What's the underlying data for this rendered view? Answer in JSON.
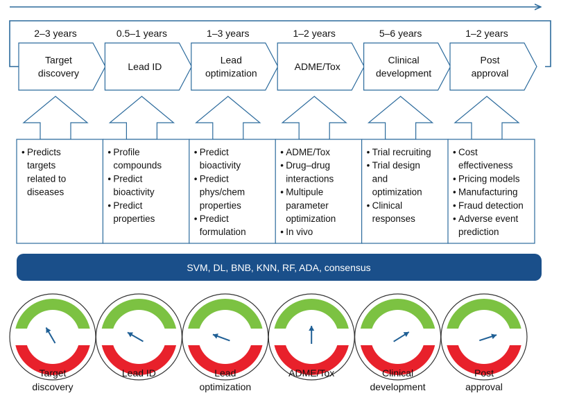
{
  "stages": [
    {
      "duration": "2–3 years",
      "label_lines": [
        "Target",
        "discovery"
      ],
      "bullets": [
        [
          "Predicts",
          "targets",
          "related to",
          "diseases"
        ]
      ],
      "gauge_label_lines": [
        "Target",
        "discovery"
      ],
      "gauge_needle_deg": 30
    },
    {
      "duration": "0.5–1 years",
      "label_lines": [
        "Lead ID"
      ],
      "bullets": [
        [
          "Profile",
          "compounds"
        ],
        [
          "Predict",
          "bioactivity"
        ],
        [
          "Predict",
          "properties"
        ]
      ],
      "gauge_label_lines": [
        "Lead ID"
      ],
      "gauge_needle_deg": 60
    },
    {
      "duration": "1–3 years",
      "label_lines": [
        "Lead",
        "optimization"
      ],
      "bullets": [
        [
          "Predict",
          "bioactivity"
        ],
        [
          "Predict",
          "phys/chem",
          "properties"
        ],
        [
          "Predict",
          "formulation"
        ]
      ],
      "gauge_label_lines": [
        "Lead",
        "optimization"
      ],
      "gauge_needle_deg": 70
    },
    {
      "duration": "1–2 years",
      "label_lines": [
        "ADME/Tox"
      ],
      "bullets": [
        [
          "ADME/Tox"
        ],
        [
          "Drug–drug",
          "interactions"
        ],
        [
          "Multipule",
          "parameter",
          "optimization"
        ],
        [
          "In vivo"
        ]
      ],
      "gauge_label_lines": [
        "ADME/Tox"
      ],
      "gauge_needle_deg": 0
    },
    {
      "duration": "5–6 years",
      "label_lines": [
        "Clinical",
        "development"
      ],
      "bullets": [
        [
          "Trial recruiting"
        ],
        [
          "Trial design",
          "and",
          "optimization"
        ],
        [
          "Clinical",
          "responses"
        ]
      ],
      "gauge_label_lines": [
        "Clinical",
        "development"
      ],
      "gauge_needle_deg": -58
    },
    {
      "duration": "1–2 years",
      "label_lines": [
        "Post",
        "approval"
      ],
      "bullets": [
        [
          "Cost",
          "effectiveness"
        ],
        [
          "Pricing models"
        ],
        [
          "Manufacturing"
        ],
        [
          "Fraud detection"
        ],
        [
          "Adverse event",
          "prediction"
        ]
      ],
      "gauge_label_lines": [
        "Post",
        "approval"
      ],
      "gauge_needle_deg": -72
    }
  ],
  "methods_banner": "SVM, DL, BNB, KNN, RF, ADA, consensus",
  "colors": {
    "outline": "#2b6a9c",
    "banner": "#1a4f8a",
    "gauge_green": "#7cc242",
    "gauge_red": "#e8212b",
    "needle": "#1f5f95",
    "gauge_ring": "#333333"
  }
}
